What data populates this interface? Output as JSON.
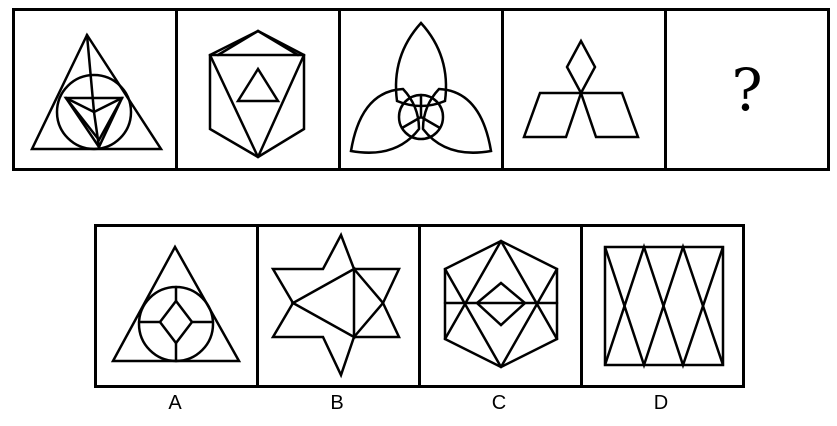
{
  "question": {
    "figures": [
      {
        "icon": "triangle-circle-figure"
      },
      {
        "icon": "hexagon-triangles-figure"
      },
      {
        "icon": "three-petals-figure"
      },
      {
        "icon": "three-diamonds-figure"
      }
    ],
    "unknown_label": "?"
  },
  "options": [
    {
      "label": "A",
      "icon": "triangle-circle-diamond-figure"
    },
    {
      "label": "B",
      "icon": "six-point-star-figure"
    },
    {
      "label": "C",
      "icon": "hexagon-diamonds-figure"
    },
    {
      "label": "D",
      "icon": "square-crossed-lines-figure"
    }
  ],
  "colors": {
    "ink": "#000000",
    "background": "#ffffff"
  }
}
